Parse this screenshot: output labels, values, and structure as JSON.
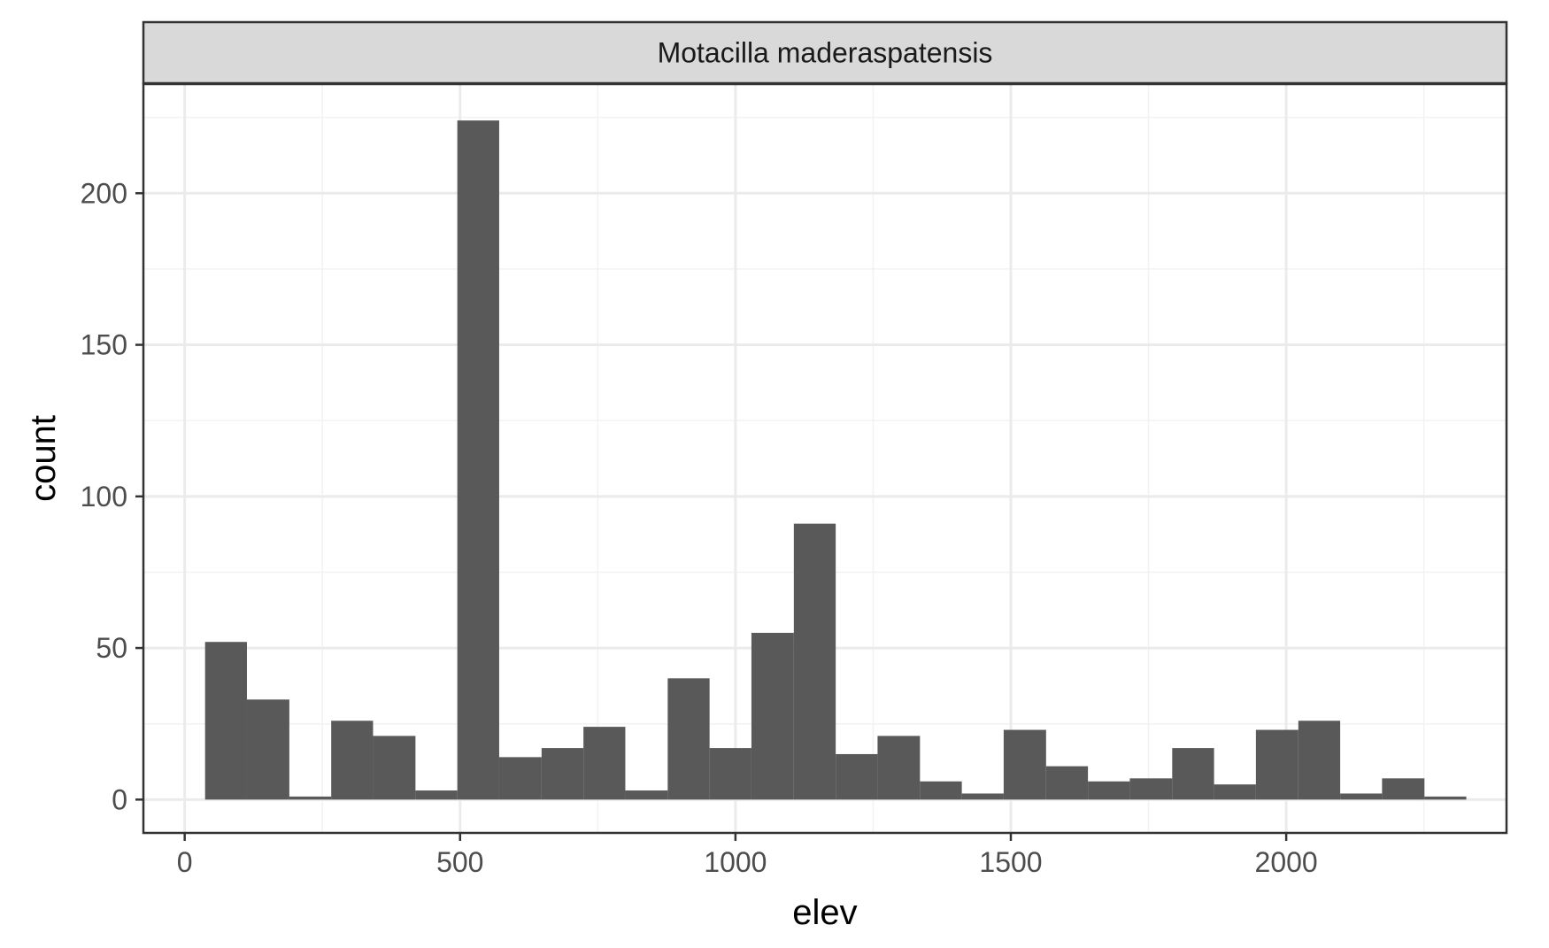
{
  "colors": {
    "bar_fill": "#595959",
    "panel_border": "#333333",
    "strip_fill": "#d9d9d9",
    "grid_major": "#ebebeb",
    "grid_minor": "#f2f2f2",
    "tick_text": "#4d4d4d"
  },
  "chart_data": {
    "type": "histogram",
    "title": "",
    "facet_label": "Motacilla maderaspatensis",
    "xlabel": "elev",
    "ylabel": "count",
    "xlim": [
      -75,
      2400
    ],
    "ylim": [
      -11,
      236
    ],
    "x_major_ticks": [
      0,
      500,
      1000,
      1500,
      2000
    ],
    "x_tick_labels": [
      "0",
      "500",
      "1000",
      "1500",
      "2000"
    ],
    "x_minor_ticks": [
      250,
      750,
      1250,
      1750,
      2250
    ],
    "y_major_ticks": [
      0,
      50,
      100,
      150,
      200
    ],
    "y_tick_labels": [
      "0",
      "50",
      "100",
      "150",
      "200"
    ],
    "y_minor_ticks": [
      25,
      75,
      125,
      175,
      225
    ],
    "grid": true,
    "bins": [
      {
        "x0": 37,
        "x1": 113,
        "count": 52
      },
      {
        "x0": 113,
        "x1": 190,
        "count": 33
      },
      {
        "x0": 190,
        "x1": 266,
        "count": 1
      },
      {
        "x0": 266,
        "x1": 342,
        "count": 26
      },
      {
        "x0": 342,
        "x1": 419,
        "count": 21
      },
      {
        "x0": 419,
        "x1": 495,
        "count": 3
      },
      {
        "x0": 495,
        "x1": 571,
        "count": 224
      },
      {
        "x0": 571,
        "x1": 648,
        "count": 14
      },
      {
        "x0": 648,
        "x1": 724,
        "count": 17
      },
      {
        "x0": 724,
        "x1": 800,
        "count": 24
      },
      {
        "x0": 800,
        "x1": 877,
        "count": 3
      },
      {
        "x0": 877,
        "x1": 953,
        "count": 40
      },
      {
        "x0": 953,
        "x1": 1029,
        "count": 17
      },
      {
        "x0": 1029,
        "x1": 1106,
        "count": 55
      },
      {
        "x0": 1106,
        "x1": 1182,
        "count": 91
      },
      {
        "x0": 1182,
        "x1": 1258,
        "count": 15
      },
      {
        "x0": 1258,
        "x1": 1335,
        "count": 21
      },
      {
        "x0": 1335,
        "x1": 1411,
        "count": 6
      },
      {
        "x0": 1411,
        "x1": 1487,
        "count": 2
      },
      {
        "x0": 1487,
        "x1": 1564,
        "count": 23
      },
      {
        "x0": 1564,
        "x1": 1640,
        "count": 11
      },
      {
        "x0": 1640,
        "x1": 1716,
        "count": 6
      },
      {
        "x0": 1716,
        "x1": 1793,
        "count": 7
      },
      {
        "x0": 1793,
        "x1": 1869,
        "count": 17
      },
      {
        "x0": 1869,
        "x1": 1945,
        "count": 5
      },
      {
        "x0": 1945,
        "x1": 2022,
        "count": 23
      },
      {
        "x0": 2022,
        "x1": 2098,
        "count": 26
      },
      {
        "x0": 2098,
        "x1": 2174,
        "count": 2
      },
      {
        "x0": 2174,
        "x1": 2251,
        "count": 7
      },
      {
        "x0": 2251,
        "x1": 2327,
        "count": 1
      }
    ]
  }
}
